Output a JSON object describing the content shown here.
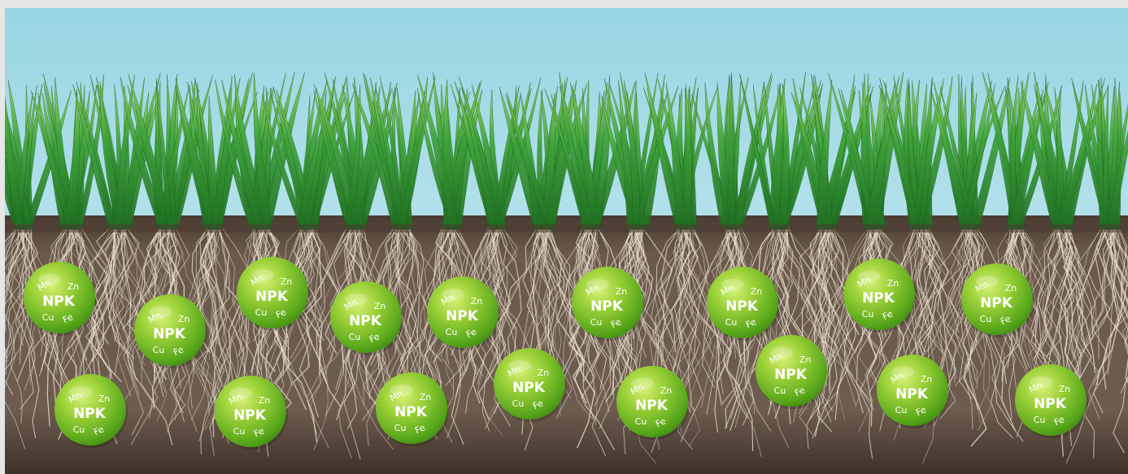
{
  "granule": {
    "main": "NPK",
    "tl": "Mn",
    "tr": "Zn",
    "bl": "Cu",
    "br": "Fe"
  },
  "colors": {
    "sky_top": "#9ed8e6",
    "sky_bottom": "#a6dce8",
    "grass_dark": "#2f8a2a",
    "grass_light": "#7cc94a",
    "soil": "#5b4a3e",
    "soil_dark": "#3e3128",
    "roots": "#e8e0cf",
    "granule_light": "#b7e34f",
    "granule_dark": "#4f9a12"
  }
}
